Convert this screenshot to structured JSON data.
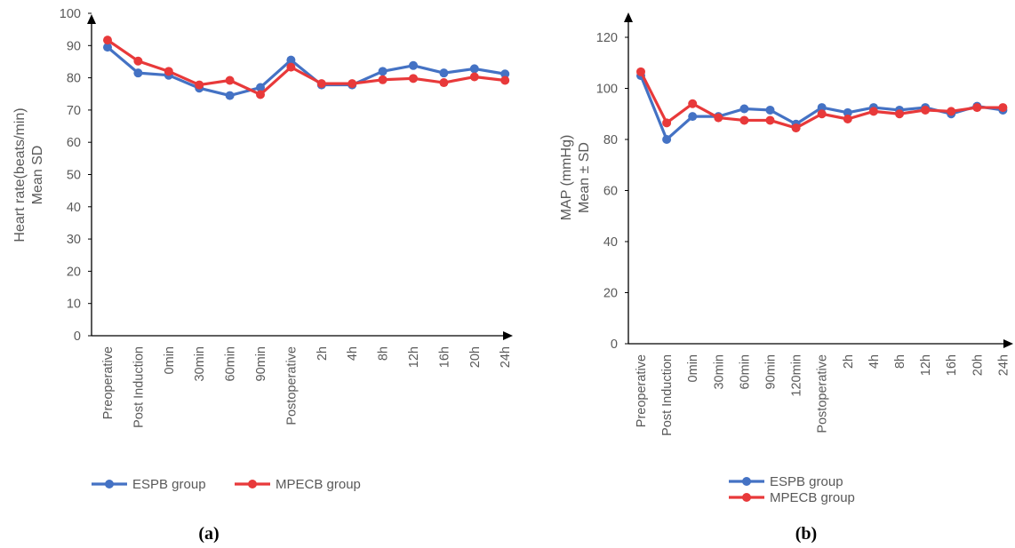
{
  "colors": {
    "espb": "#4472C4",
    "mpecb": "#E8393A",
    "axis": "#000000",
    "text": "#595959"
  },
  "chart_data": [
    {
      "type": "line",
      "panel_label": "(a)",
      "ylabel_line1": "Heart rate(beats/min)",
      "ylabel_line2": "Mean SD",
      "ylim": [
        0,
        100
      ],
      "yticks": [
        0,
        10,
        20,
        30,
        40,
        50,
        60,
        70,
        80,
        90,
        100
      ],
      "grid": false,
      "legend_position": "bottom",
      "categories": [
        "Preoperative",
        "Post Induction",
        "0min",
        "30min",
        "60min",
        "90min",
        "Postoperative",
        "2h",
        "4h",
        "8h",
        "12h",
        "16h",
        "20h",
        "24h"
      ],
      "series": [
        {
          "name": "ESPB group",
          "color": "#4472C4",
          "values": [
            89.5,
            81.5,
            80.8,
            76.8,
            74.5,
            77.0,
            85.5,
            77.8,
            77.8,
            82.0,
            83.8,
            81.5,
            82.8,
            81.2
          ]
        },
        {
          "name": "MPECB group",
          "color": "#E8393A",
          "values": [
            91.7,
            85.2,
            82.0,
            77.8,
            79.2,
            74.8,
            83.3,
            78.2,
            78.2,
            79.4,
            79.8,
            78.5,
            80.3,
            79.2
          ]
        }
      ]
    },
    {
      "type": "line",
      "panel_label": "(b)",
      "ylabel_line1": "MAP (mmHg)",
      "ylabel_line2": "Mean ± SD",
      "ylim": [
        0,
        120
      ],
      "yticks": [
        0,
        20,
        40,
        60,
        80,
        100,
        120
      ],
      "grid": false,
      "legend_position": "bottom",
      "categories": [
        "Preoperative",
        "Post Induction",
        "0min",
        "30min",
        "60min",
        "90min",
        "120min",
        "Postoperative",
        "2h",
        "4h",
        "8h",
        "12h",
        "16h",
        "20h",
        "24h"
      ],
      "series": [
        {
          "name": "ESPB group",
          "color": "#4472C4",
          "values": [
            105.0,
            80.0,
            89.0,
            89.0,
            92.0,
            91.5,
            86.0,
            92.5,
            90.5,
            92.5,
            91.5,
            92.5,
            90.0,
            93.0,
            91.5
          ]
        },
        {
          "name": "MPECB group",
          "color": "#E8393A",
          "values": [
            106.5,
            86.5,
            94.0,
            88.5,
            87.5,
            87.5,
            84.5,
            90.0,
            88.0,
            91.0,
            90.0,
            91.5,
            91.0,
            92.5,
            92.5
          ]
        }
      ]
    }
  ]
}
